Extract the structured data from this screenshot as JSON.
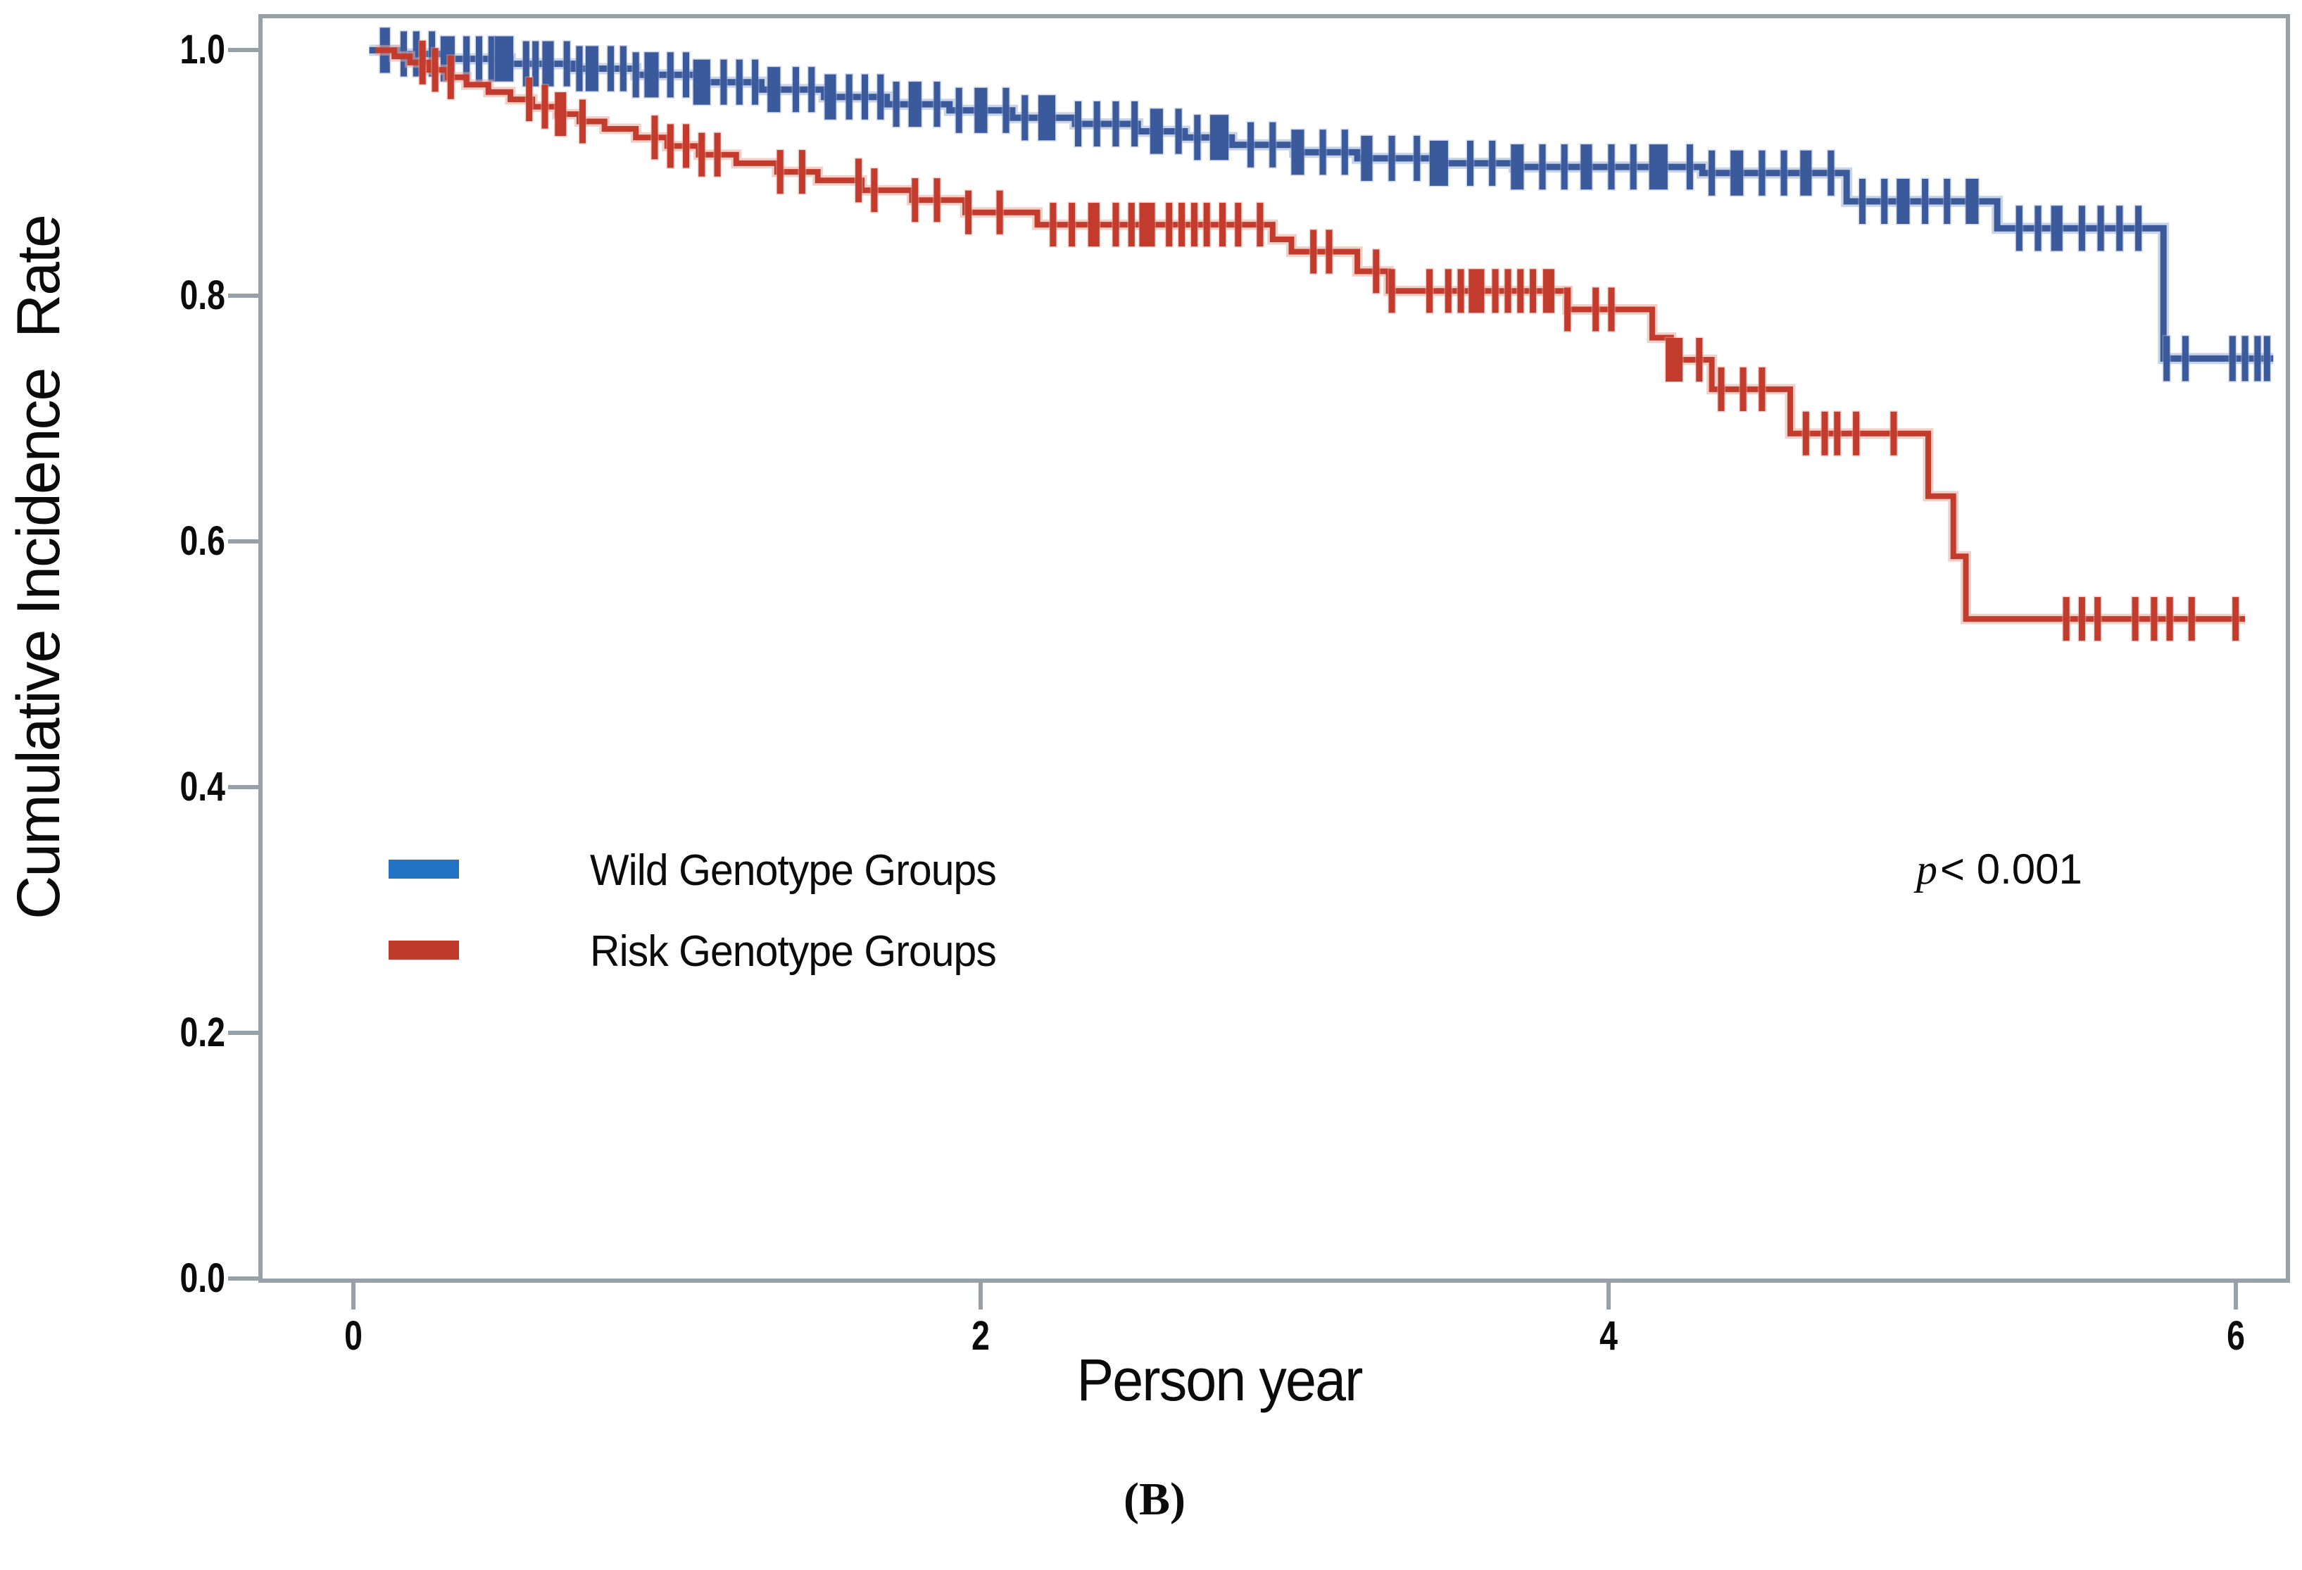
{
  "figure": {
    "panel_label": "(B)",
    "p_value": {
      "symbol": "p",
      "rest": "< 0.001"
    },
    "x_axis": {
      "label": "Person year"
    },
    "y_axis": {
      "label": "Cumulative Incidence  Rate"
    },
    "legend": [
      {
        "label": "Wild Genotype Groups",
        "color": "#2173c6"
      },
      {
        "label": "Risk Genotype Groups",
        "color": "#c03a2c"
      }
    ]
  },
  "chart_data": {
    "type": "line",
    "subtype": "kaplan-meier-step-with-censor-ticks",
    "title": "",
    "xlabel": "Person year",
    "ylabel": "Cumulative Incidence Rate",
    "annotation": "p< 0.001",
    "panel": "(B)",
    "xlim": [
      -0.29,
      6.16
    ],
    "ylim": [
      0,
      1.026
    ],
    "x_ticks": [
      0,
      2,
      4,
      6
    ],
    "x_tick_labels": [
      "0",
      "2",
      "4",
      "6"
    ],
    "y_ticks": [
      1.0,
      0.8,
      0.6,
      0.4,
      0.2,
      0.0
    ],
    "y_tick_labels": [
      "1.0",
      "0.8",
      "0.6",
      "0.4",
      "0.2",
      "0.0"
    ],
    "grid": false,
    "legend_position": "inside-center-left",
    "series": [
      {
        "name": "Wild Genotype Groups",
        "line_color": "#3b5a9c",
        "halo_color": "#9fb0d4",
        "line_width": 9,
        "censor_height": 64,
        "steps": [
          [
            0.05,
            1.0
          ],
          [
            0.15,
            0.997
          ],
          [
            0.3,
            0.993
          ],
          [
            0.5,
            0.989
          ],
          [
            0.7,
            0.985
          ],
          [
            0.9,
            0.98
          ],
          [
            1.1,
            0.974
          ],
          [
            1.3,
            0.968
          ],
          [
            1.5,
            0.962
          ],
          [
            1.7,
            0.956
          ],
          [
            1.9,
            0.951
          ],
          [
            2.1,
            0.945
          ],
          [
            2.3,
            0.94
          ],
          [
            2.5,
            0.934
          ],
          [
            2.65,
            0.929
          ],
          [
            2.8,
            0.923
          ],
          [
            3.0,
            0.917
          ],
          [
            3.2,
            0.912
          ],
          [
            3.45,
            0.908
          ],
          [
            3.7,
            0.905
          ],
          [
            4.3,
            0.9
          ],
          [
            4.76,
            0.877
          ],
          [
            5.24,
            0.855
          ],
          [
            5.77,
            0.749
          ],
          [
            6.12,
            0.749
          ]
        ],
        "censors": [
          [
            0.1,
            14
          ],
          [
            0.16,
            9
          ],
          [
            0.2,
            9
          ],
          [
            0.25,
            9
          ],
          [
            0.3,
            20
          ],
          [
            0.36,
            9
          ],
          [
            0.4,
            9
          ],
          [
            0.44,
            9
          ],
          [
            0.48,
            26
          ],
          [
            0.55,
            9
          ],
          [
            0.58,
            9
          ],
          [
            0.62,
            16
          ],
          [
            0.68,
            9
          ],
          [
            0.72,
            9
          ],
          [
            0.76,
            18
          ],
          [
            0.82,
            9
          ],
          [
            0.86,
            9
          ],
          [
            0.9,
            9
          ],
          [
            0.95,
            20
          ],
          [
            1.01,
            9
          ],
          [
            1.06,
            9
          ],
          [
            1.11,
            24
          ],
          [
            1.18,
            9
          ],
          [
            1.23,
            9
          ],
          [
            1.28,
            9
          ],
          [
            1.34,
            18
          ],
          [
            1.41,
            9
          ],
          [
            1.46,
            9
          ],
          [
            1.52,
            16
          ],
          [
            1.58,
            9
          ],
          [
            1.63,
            9
          ],
          [
            1.68,
            9
          ],
          [
            1.73,
            9
          ],
          [
            1.79,
            18
          ],
          [
            1.86,
            9
          ],
          [
            1.93,
            9
          ],
          [
            2.0,
            18
          ],
          [
            2.08,
            9
          ],
          [
            2.14,
            9
          ],
          [
            2.21,
            24
          ],
          [
            2.31,
            9
          ],
          [
            2.37,
            9
          ],
          [
            2.43,
            9
          ],
          [
            2.49,
            9
          ],
          [
            2.56,
            18
          ],
          [
            2.63,
            9
          ],
          [
            2.69,
            9
          ],
          [
            2.76,
            26
          ],
          [
            2.86,
            9
          ],
          [
            2.93,
            9
          ],
          [
            3.01,
            18
          ],
          [
            3.09,
            9
          ],
          [
            3.16,
            9
          ],
          [
            3.23,
            16
          ],
          [
            3.31,
            9
          ],
          [
            3.39,
            9
          ],
          [
            3.46,
            26
          ],
          [
            3.56,
            9
          ],
          [
            3.63,
            9
          ],
          [
            3.71,
            18
          ],
          [
            3.79,
            9
          ],
          [
            3.86,
            9
          ],
          [
            3.93,
            16
          ],
          [
            4.01,
            9
          ],
          [
            4.08,
            9
          ],
          [
            4.16,
            26
          ],
          [
            4.26,
            9
          ],
          [
            4.33,
            9
          ],
          [
            4.41,
            18
          ],
          [
            4.49,
            9
          ],
          [
            4.56,
            9
          ],
          [
            4.63,
            16
          ],
          [
            4.71,
            9
          ],
          [
            4.81,
            9
          ],
          [
            4.88,
            9
          ],
          [
            4.94,
            18
          ],
          [
            5.01,
            9
          ],
          [
            5.08,
            9
          ],
          [
            5.16,
            18
          ],
          [
            5.31,
            9
          ],
          [
            5.37,
            9
          ],
          [
            5.43,
            16
          ],
          [
            5.51,
            9
          ],
          [
            5.57,
            9
          ],
          [
            5.63,
            9
          ],
          [
            5.69,
            9
          ],
          [
            5.78,
            9
          ],
          [
            5.84,
            9
          ],
          [
            5.99,
            9
          ],
          [
            6.03,
            9
          ],
          [
            6.07,
            9
          ],
          [
            6.1,
            9
          ]
        ]
      },
      {
        "name": "Risk Genotype Groups",
        "line_color": "#c23b2d",
        "halo_color": "#e3ab9f",
        "line_width": 8,
        "censor_height": 62,
        "steps": [
          [
            0.07,
            1.0
          ],
          [
            0.13,
            0.995
          ],
          [
            0.18,
            0.99
          ],
          [
            0.24,
            0.984
          ],
          [
            0.3,
            0.978
          ],
          [
            0.36,
            0.972
          ],
          [
            0.43,
            0.966
          ],
          [
            0.5,
            0.96
          ],
          [
            0.57,
            0.954
          ],
          [
            0.65,
            0.948
          ],
          [
            0.72,
            0.942
          ],
          [
            0.8,
            0.936
          ],
          [
            0.9,
            0.929
          ],
          [
            1.0,
            0.922
          ],
          [
            1.1,
            0.915
          ],
          [
            1.22,
            0.908
          ],
          [
            1.35,
            0.901
          ],
          [
            1.48,
            0.894
          ],
          [
            1.62,
            0.886
          ],
          [
            1.78,
            0.878
          ],
          [
            1.95,
            0.868
          ],
          [
            2.18,
            0.858
          ],
          [
            2.93,
            0.846
          ],
          [
            2.99,
            0.836
          ],
          [
            3.2,
            0.82
          ],
          [
            3.3,
            0.804
          ],
          [
            3.87,
            0.789
          ],
          [
            4.14,
            0.766
          ],
          [
            4.2,
            0.748
          ],
          [
            4.33,
            0.724
          ],
          [
            4.58,
            0.688
          ],
          [
            5.02,
            0.637
          ],
          [
            5.1,
            0.588
          ],
          [
            5.14,
            0.537
          ],
          [
            6.03,
            0.537
          ]
        ],
        "censors": [
          [
            0.22,
            9
          ],
          [
            0.26,
            9
          ],
          [
            0.31,
            9
          ],
          [
            0.56,
            9
          ],
          [
            0.61,
            9
          ],
          [
            0.66,
            16
          ],
          [
            0.73,
            9
          ],
          [
            0.96,
            9
          ],
          [
            1.01,
            9
          ],
          [
            1.06,
            9
          ],
          [
            1.11,
            9
          ],
          [
            1.16,
            9
          ],
          [
            1.36,
            9
          ],
          [
            1.43,
            9
          ],
          [
            1.61,
            9
          ],
          [
            1.66,
            9
          ],
          [
            1.79,
            9
          ],
          [
            1.86,
            9
          ],
          [
            1.96,
            9
          ],
          [
            2.06,
            9
          ],
          [
            2.23,
            9
          ],
          [
            2.29,
            9
          ],
          [
            2.36,
            16
          ],
          [
            2.43,
            9
          ],
          [
            2.48,
            9
          ],
          [
            2.53,
            22
          ],
          [
            2.6,
            9
          ],
          [
            2.64,
            9
          ],
          [
            2.68,
            9
          ],
          [
            2.72,
            9
          ],
          [
            2.77,
            9
          ],
          [
            2.82,
            9
          ],
          [
            2.89,
            9
          ],
          [
            3.06,
            9
          ],
          [
            3.11,
            9
          ],
          [
            3.26,
            9
          ],
          [
            3.31,
            9
          ],
          [
            3.43,
            9
          ],
          [
            3.49,
            9
          ],
          [
            3.53,
            9
          ],
          [
            3.58,
            22
          ],
          [
            3.64,
            9
          ],
          [
            3.68,
            9
          ],
          [
            3.72,
            9
          ],
          [
            3.76,
            9
          ],
          [
            3.81,
            16
          ],
          [
            3.87,
            9
          ],
          [
            3.96,
            9
          ],
          [
            4.01,
            9
          ],
          [
            4.21,
            24
          ],
          [
            4.29,
            9
          ],
          [
            4.36,
            9
          ],
          [
            4.43,
            9
          ],
          [
            4.49,
            9
          ],
          [
            4.63,
            9
          ],
          [
            4.69,
            9
          ],
          [
            4.73,
            9
          ],
          [
            4.79,
            9
          ],
          [
            4.91,
            9
          ],
          [
            5.46,
            9
          ],
          [
            5.51,
            9
          ],
          [
            5.56,
            9
          ],
          [
            5.68,
            9
          ],
          [
            5.74,
            9
          ],
          [
            5.79,
            9
          ],
          [
            5.86,
            9
          ],
          [
            6.0,
            9
          ]
        ]
      }
    ]
  }
}
